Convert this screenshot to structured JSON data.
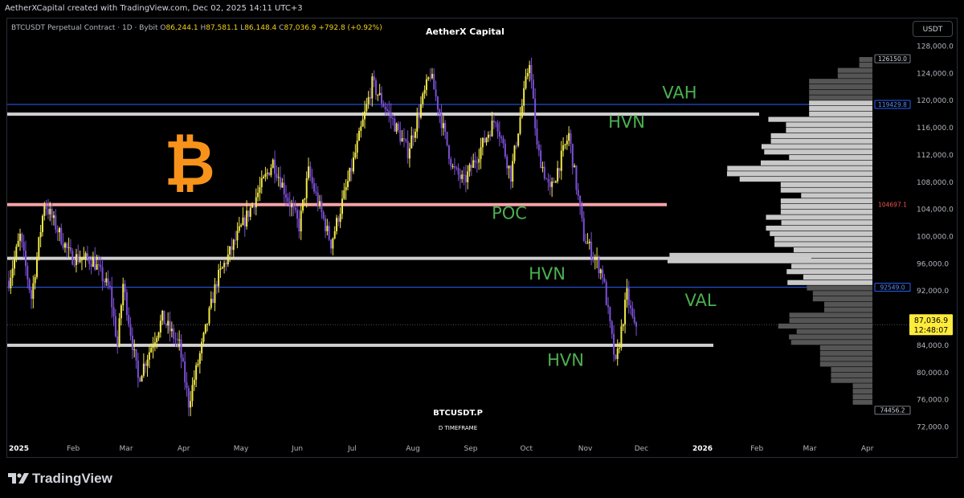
{
  "header": {
    "created_text": "AetherXCapital created with TradingView.com, Dec 02, 2025 14:11 UTC+3",
    "symbol_text": "BTCUSDT Perpetual Contract · 1D · Bybit",
    "open_label": "O",
    "open": "86,244.1",
    "high_label": "H",
    "high": "87,581.1",
    "low_label": "L",
    "low": "86,148.4",
    "close_label": "C",
    "close": "87,036.9",
    "change": "+792.8 (+0.92%)",
    "brand": "AetherX Capital",
    "currency": "USDT"
  },
  "watermark": {
    "symbol": "BTCUSDT.P",
    "timeframe": "D TIMEFRAME"
  },
  "footer": {
    "logo_text": "TradingView"
  },
  "colors": {
    "bull": "#f2e84b",
    "bear": "#7b4fd6",
    "poc": "#f4a3a8",
    "hvn": "#d0d0d0",
    "value_area": "#2962ff",
    "label_green": "#4caf50",
    "bitcoin": "#f7931a",
    "profile_in": "#c9c9c9",
    "profile_out": "#555555"
  },
  "chart_data": {
    "type": "candlestick",
    "timeframe": "1D",
    "ylim": [
      72000,
      128000
    ],
    "y_ticks": [
      "72,000.0",
      "76,000.0",
      "80,000.0",
      "84,000.0",
      "88,000.0",
      "92,000.0",
      "96,000.0",
      "100,000.0",
      "104,000.0",
      "108,000.0",
      "112,000.0",
      "116,000.0",
      "120,000.0",
      "124,000.0",
      "128,000.0"
    ],
    "x_tick_labels": [
      {
        "label": "2025",
        "bold": true,
        "date": "2025-01-01"
      },
      {
        "label": "Feb",
        "bold": false,
        "date": "2025-02-01"
      },
      {
        "label": "Mar",
        "bold": false,
        "date": "2025-03-01"
      },
      {
        "label": "Apr",
        "bold": false,
        "date": "2025-04-01"
      },
      {
        "label": "May",
        "bold": false,
        "date": "2025-05-01"
      },
      {
        "label": "Jun",
        "bold": false,
        "date": "2025-06-01"
      },
      {
        "label": "Jul",
        "bold": false,
        "date": "2025-07-01"
      },
      {
        "label": "Aug",
        "bold": false,
        "date": "2025-08-01"
      },
      {
        "label": "Sep",
        "bold": false,
        "date": "2025-09-01"
      },
      {
        "label": "Oct",
        "bold": false,
        "date": "2025-10-01"
      },
      {
        "label": "Nov",
        "bold": false,
        "date": "2025-11-01"
      },
      {
        "label": "Dec",
        "bold": false,
        "date": "2025-12-01"
      },
      {
        "label": "2026",
        "bold": true,
        "date": "2026-01-01"
      },
      {
        "label": "Feb",
        "bold": false,
        "date": "2026-02-01"
      },
      {
        "label": "Mar",
        "bold": false,
        "date": "2026-03-01"
      },
      {
        "label": "Apr",
        "bold": false,
        "date": "2026-04-01"
      }
    ],
    "price_path": [
      {
        "date": "2025-01-01",
        "price": 93500
      },
      {
        "date": "2025-01-07",
        "price": 100000
      },
      {
        "date": "2025-01-13",
        "price": 91000
      },
      {
        "date": "2025-01-20",
        "price": 105000
      },
      {
        "date": "2025-01-27",
        "price": 101000
      },
      {
        "date": "2025-02-03",
        "price": 97000
      },
      {
        "date": "2025-02-15",
        "price": 96500
      },
      {
        "date": "2025-02-24",
        "price": 92000
      },
      {
        "date": "2025-02-28",
        "price": 84000
      },
      {
        "date": "2025-03-03",
        "price": 93000
      },
      {
        "date": "2025-03-11",
        "price": 79000
      },
      {
        "date": "2025-03-24",
        "price": 88000
      },
      {
        "date": "2025-04-02",
        "price": 84000
      },
      {
        "date": "2025-04-07",
        "price": 75500
      },
      {
        "date": "2025-04-15",
        "price": 85000
      },
      {
        "date": "2025-04-22",
        "price": 93500
      },
      {
        "date": "2025-05-08",
        "price": 103000
      },
      {
        "date": "2025-05-22",
        "price": 111000
      },
      {
        "date": "2025-06-05",
        "price": 101500
      },
      {
        "date": "2025-06-10",
        "price": 109500
      },
      {
        "date": "2025-06-22",
        "price": 99000
      },
      {
        "date": "2025-07-03",
        "price": 110000
      },
      {
        "date": "2025-07-14",
        "price": 122500
      },
      {
        "date": "2025-07-25",
        "price": 117000
      },
      {
        "date": "2025-08-02",
        "price": 112500
      },
      {
        "date": "2025-08-14",
        "price": 124000
      },
      {
        "date": "2025-08-26",
        "price": 110000
      },
      {
        "date": "2025-09-01",
        "price": 108000
      },
      {
        "date": "2025-09-18",
        "price": 117500
      },
      {
        "date": "2025-09-26",
        "price": 109000
      },
      {
        "date": "2025-10-06",
        "price": 126000
      },
      {
        "date": "2025-10-10",
        "price": 113000
      },
      {
        "date": "2025-10-17",
        "price": 106500
      },
      {
        "date": "2025-10-27",
        "price": 115000
      },
      {
        "date": "2025-11-04",
        "price": 100000
      },
      {
        "date": "2025-11-14",
        "price": 94500
      },
      {
        "date": "2025-11-21",
        "price": 81000
      },
      {
        "date": "2025-11-27",
        "price": 91500
      },
      {
        "date": "2025-12-01",
        "price": 86500
      },
      {
        "date": "2025-12-02",
        "price": 87036.9
      }
    ],
    "last_price": 87036.9,
    "last_price_label": "87,036.9",
    "countdown": "12:48:07",
    "levels": [
      {
        "name": "VAH",
        "price": 119429.8,
        "label": "119429.8",
        "color": "#2962ff"
      },
      {
        "name": "POC",
        "price": 104697.1,
        "label": "104697.1",
        "color": "#f4a3a8"
      },
      {
        "name": "VAL",
        "price": 92549.0,
        "label": "92549.0",
        "color": "#2962ff"
      },
      {
        "name": "HVN",
        "price": 118000
      },
      {
        "name": "HVN",
        "price": 96800
      },
      {
        "name": "HVN",
        "price": 84000
      }
    ],
    "range_high_label": "126150.0",
    "range_low_label": "74456.2",
    "annotations": [
      {
        "text": "VAH",
        "price": 120300
      },
      {
        "text": "HVN",
        "price": 116000
      },
      {
        "text": "POC",
        "price": 102600
      },
      {
        "text": "HVN",
        "price": 93700
      },
      {
        "text": "VAL",
        "price": 89800
      },
      {
        "text": "HVN",
        "price": 81000
      }
    ]
  }
}
